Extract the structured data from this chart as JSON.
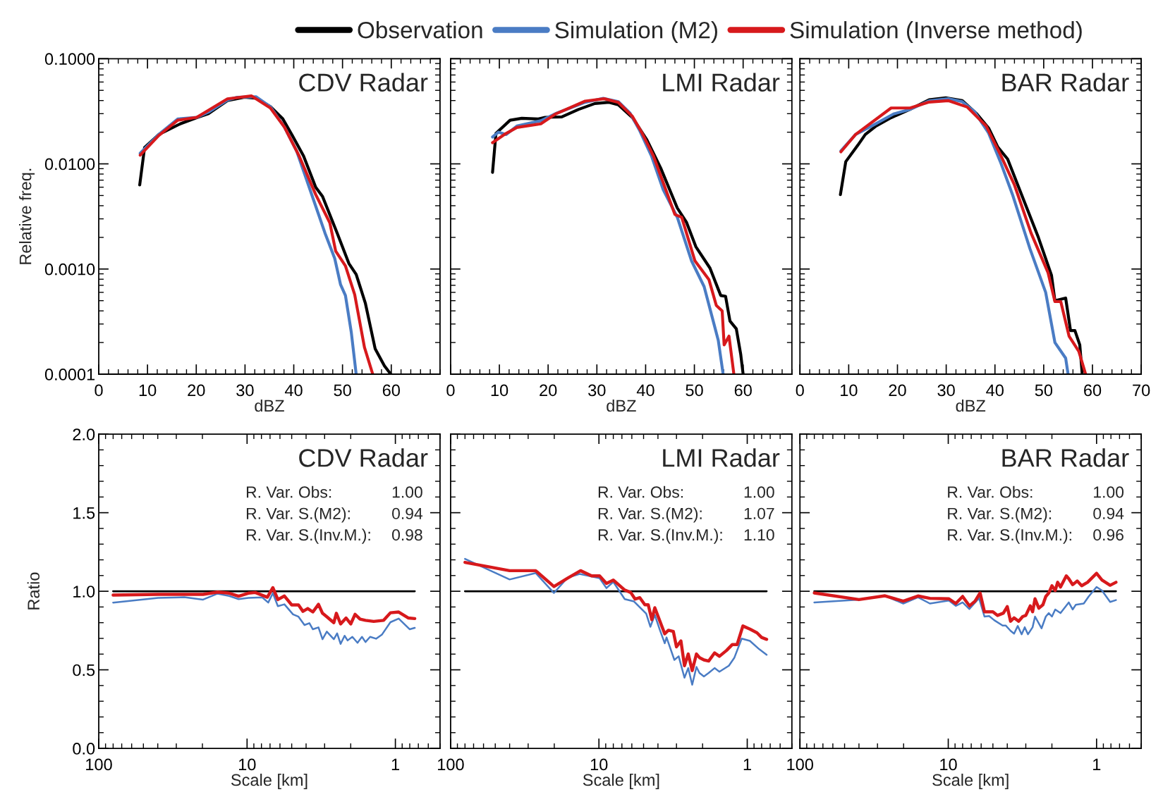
{
  "chart_data": [
    {
      "type": "line",
      "xlabel": "dBZ",
      "ylabel": "Relative freq.",
      "log": "y",
      "xlim": [
        0,
        70
      ],
      "ylim": [
        0.0001,
        0.1
      ],
      "xticks": [
        0,
        10,
        20,
        30,
        40,
        50,
        60
      ],
      "yticks": [
        {
          "value": 0.0001,
          "label": "0.0001"
        },
        {
          "value": 0.001,
          "label": "0.0010"
        },
        {
          "value": 0.01,
          "label": "0.0100"
        },
        {
          "value": 0.1,
          "label": "0.1000"
        }
      ],
      "legend": "top",
      "grid": false,
      "annotations": [
        "CDV Radar"
      ],
      "series": [
        {
          "name": "Observation",
          "color": "#000000",
          "x": [
            8.4,
            9.4,
            12.3,
            16.7,
            20.1,
            22.5,
            26.4,
            29.9,
            32.3,
            35.2,
            37.7,
            39.6,
            42,
            44.5,
            45.9,
            48.9,
            51.3,
            52.8,
            54.7,
            56.7,
            58.6,
            59.9
          ],
          "values": [
            0.0063,
            0.0143,
            0.019,
            0.024,
            0.0275,
            0.03,
            0.04,
            0.043,
            0.042,
            0.035,
            0.027,
            0.019,
            0.0119,
            0.006,
            0.0049,
            0.0022,
            0.00113,
            0.00089,
            0.00047,
            0.000174,
            0.00012,
            0.0001
          ]
        },
        {
          "name": "Simulation (M2)",
          "color": "#4a7cc4",
          "x": [
            8.5,
            12.3,
            16.2,
            20.1,
            22.5,
            26.4,
            28.4,
            32.3,
            35.2,
            38.1,
            40.6,
            43.5,
            46.4,
            48.4,
            49.6,
            50.6,
            51.8,
            52.8
          ],
          "values": [
            0.0126,
            0.019,
            0.0267,
            0.0277,
            0.031,
            0.0405,
            0.043,
            0.0434,
            0.035,
            0.0223,
            0.0132,
            0.0054,
            0.0022,
            0.00126,
            0.00071,
            0.00056,
            0.00025,
            0.0001
          ]
        },
        {
          "name": "Simulation (Inverse method)",
          "color": "#d7191c",
          "x": [
            8.5,
            12.3,
            16.2,
            20.1,
            26.4,
            31.3,
            35.2,
            38.1,
            41.1,
            44.5,
            47.4,
            48.6,
            50.6,
            52.5,
            54.5,
            56.2
          ],
          "values": [
            0.0121,
            0.0186,
            0.026,
            0.0277,
            0.0415,
            0.0443,
            0.034,
            0.0223,
            0.0119,
            0.0051,
            0.00275,
            0.00148,
            0.00107,
            0.00057,
            0.00018,
            0.0001
          ]
        }
      ]
    },
    {
      "type": "line",
      "xlabel": "dBZ",
      "log": "y",
      "xlim": [
        0,
        70
      ],
      "ylim": [
        0.0001,
        0.1
      ],
      "xticks": [
        0,
        10,
        20,
        30,
        40,
        50,
        60
      ],
      "tick_labels": "x",
      "grid": false,
      "annotations": [
        "LMI Radar"
      ],
      "series": [
        {
          "color": "#000000",
          "x": [
            8.6,
            9.3,
            12.2,
            14.6,
            18,
            19.4,
            22.8,
            26.2,
            29.6,
            32.5,
            34.4,
            37.3,
            40.2,
            43.1,
            46.5,
            48.4,
            50.3,
            53.2,
            55.4,
            56.4,
            57.3,
            58.6,
            59.5,
            60
          ],
          "values": [
            0.0083,
            0.0195,
            0.026,
            0.0271,
            0.0267,
            0.0277,
            0.028,
            0.0329,
            0.0375,
            0.0385,
            0.0365,
            0.0275,
            0.0171,
            0.0091,
            0.0038,
            0.00277,
            0.00163,
            0.00102,
            0.00056,
            0.00055,
            0.00032,
            0.00027,
            0.000155,
            0.0001
          ]
        },
        {
          "color": "#4a7cc4",
          "x": [
            8.6,
            9.8,
            11.4,
            13.6,
            18.5,
            21.8,
            27.6,
            31.3,
            34.4,
            36.8,
            38.7,
            41.2,
            43.6,
            46.5,
            49.4,
            52,
            54.9,
            55.9
          ],
          "values": [
            0.018,
            0.02,
            0.019,
            0.0229,
            0.0257,
            0.0304,
            0.0385,
            0.042,
            0.039,
            0.0304,
            0.0211,
            0.0119,
            0.0057,
            0.0031,
            0.0012,
            0.00068,
            0.00021,
            0.0001
          ]
        },
        {
          "color": "#d7191c",
          "x": [
            8.6,
            11,
            13.6,
            18.5,
            21.4,
            27.6,
            31.5,
            34.4,
            37.3,
            39.2,
            41.6,
            46,
            47.4,
            50.1,
            53,
            54.5,
            55.7,
            56.1,
            57.1,
            58.1
          ],
          "values": [
            0.0159,
            0.019,
            0.0222,
            0.024,
            0.0296,
            0.0395,
            0.0416,
            0.0385,
            0.0282,
            0.0199,
            0.0119,
            0.0033,
            0.0031,
            0.0012,
            0.00079,
            0.00045,
            0.0004,
            0.00019,
            0.00023,
            0.0001
          ]
        }
      ]
    },
    {
      "type": "line",
      "xlabel": "dBZ",
      "log": "y",
      "xlim": [
        0,
        70
      ],
      "ylim": [
        0.0001,
        0.1
      ],
      "xticks": [
        0,
        10,
        20,
        30,
        40,
        50,
        60,
        70
      ],
      "tick_labels": "x",
      "grid": false,
      "annotations": [
        "BAR Radar"
      ],
      "series": [
        {
          "color": "#000000",
          "x": [
            8.3,
            9.4,
            11.9,
            13.4,
            15.6,
            18.7,
            22.6,
            26.5,
            29.9,
            33.3,
            36.3,
            38.7,
            40.6,
            42.6,
            46,
            48.9,
            51.6,
            52.3,
            54.5,
            55.5,
            56.4,
            57.4,
            57.9
          ],
          "values": [
            0.0051,
            0.0105,
            0.0151,
            0.019,
            0.0229,
            0.0275,
            0.033,
            0.0407,
            0.0425,
            0.04,
            0.0298,
            0.0219,
            0.0144,
            0.0111,
            0.0044,
            0.002,
            0.00087,
            0.0005,
            0.00053,
            0.00026,
            0.00026,
            0.00019,
            0.0001
          ]
        },
        {
          "color": "#4a7cc4",
          "x": [
            8.4,
            11.4,
            15.3,
            19.2,
            22.6,
            26.5,
            30.4,
            33.3,
            35.8,
            38.7,
            41.1,
            43.6,
            47.2,
            50.4,
            52.3,
            54.5,
            55
          ],
          "values": [
            0.0133,
            0.019,
            0.0237,
            0.0298,
            0.033,
            0.0397,
            0.0417,
            0.039,
            0.0314,
            0.0196,
            0.0105,
            0.0051,
            0.00155,
            0.0006,
            0.0002,
            0.000142,
            0.0001
          ]
        },
        {
          "color": "#d7191c",
          "x": [
            8.4,
            11.4,
            18.7,
            22.6,
            26.5,
            30.4,
            34.3,
            38.2,
            41.1,
            44,
            47.4,
            50.9,
            52.3,
            53.5,
            55.2,
            57.2,
            58.6
          ],
          "values": [
            0.013,
            0.019,
            0.034,
            0.034,
            0.0387,
            0.0399,
            0.0347,
            0.0229,
            0.0123,
            0.0063,
            0.0022,
            0.00092,
            0.00049,
            0.00049,
            0.00023,
            0.000165,
            0.0001
          ]
        }
      ]
    },
    {
      "type": "line",
      "xlabel": "Scale [km]",
      "ylabel": "Ratio",
      "log": "x",
      "xlim": [
        100,
        0.5
      ],
      "ylim": [
        0,
        2
      ],
      "xticks": [
        100,
        10,
        1
      ],
      "yticks": [
        {
          "value": 0,
          "label": "0.0"
        },
        {
          "value": 0.5,
          "label": "0.5"
        },
        {
          "value": 1,
          "label": "1.0"
        },
        {
          "value": 1.5,
          "label": "1.5"
        },
        {
          "value": 2,
          "label": "2.0"
        }
      ],
      "grid": false,
      "annotations": [
        "CDV Radar",
        "R. Var. Obs:",
        "1.00",
        "R. Var. S.(M2):",
        "0.94",
        "R. Var. S.(Inv.M.):",
        "0.98"
      ],
      "series": [
        {
          "color": "#000000",
          "x": [
            80,
            0.74
          ],
          "values": [
            1,
            1
          ]
        },
        {
          "color": "#4a7cc4",
          "x": [
            80,
            39.8,
            26.5,
            19.8,
            15.8,
            13.2,
            11.4,
            9.8,
            7.9,
            7.2,
            6.7,
            6.2,
            5.6,
            4.9,
            4.5,
            4.1,
            3.8,
            3.6,
            3.3,
            3.1,
            2.9,
            2.6,
            2.47,
            2.34,
            2.2,
            2.1,
            1.95,
            1.8,
            1.68,
            1.59,
            1.48,
            1.35,
            1.23,
            1.08,
            0.95,
            0.8,
            0.74
          ],
          "values": [
            0.928,
            0.958,
            0.962,
            0.947,
            0.985,
            0.97,
            0.95,
            0.958,
            0.961,
            0.928,
            0.988,
            0.905,
            0.917,
            0.853,
            0.838,
            0.785,
            0.797,
            0.758,
            0.77,
            0.695,
            0.743,
            0.695,
            0.732,
            0.665,
            0.717,
            0.687,
            0.71,
            0.672,
            0.71,
            0.677,
            0.71,
            0.698,
            0.725,
            0.803,
            0.826,
            0.758,
            0.767
          ]
        },
        {
          "color": "#d7191c",
          "x": [
            80,
            39.8,
            19.8,
            15.8,
            13.2,
            11.4,
            9.8,
            8.8,
            7.3,
            6.7,
            6.2,
            5.6,
            5.0,
            4.5,
            4.2,
            3.9,
            3.6,
            3.3,
            3.1,
            2.9,
            2.6,
            2.5,
            2.34,
            2.15,
            2.0,
            1.87,
            1.73,
            1.59,
            1.4,
            1.2,
            1.08,
            0.95,
            0.82,
            0.74
          ],
          "values": [
            0.976,
            0.98,
            0.98,
            0.995,
            0.988,
            0.968,
            0.988,
            0.992,
            0.962,
            1.023,
            0.947,
            0.97,
            0.913,
            0.913,
            0.872,
            0.89,
            0.868,
            0.917,
            0.86,
            0.838,
            0.8,
            0.86,
            0.792,
            0.83,
            0.792,
            0.853,
            0.823,
            0.815,
            0.808,
            0.815,
            0.863,
            0.868,
            0.83,
            0.826
          ]
        }
      ]
    },
    {
      "type": "line",
      "xlabel": "Scale [km]",
      "log": "x",
      "xlim": [
        100,
        0.5
      ],
      "ylim": [
        0,
        2
      ],
      "xticks": [
        100,
        10,
        1
      ],
      "tick_labels": "x",
      "grid": false,
      "annotations": [
        "LMI Radar",
        "R. Var. Obs:",
        "1.00",
        "R. Var. S.(M2):",
        "1.07",
        "R. Var. S.(Inv.M.):",
        "1.10"
      ],
      "series": [
        {
          "color": "#000000",
          "x": [
            80,
            0.74
          ],
          "values": [
            1,
            1
          ]
        },
        {
          "color": "#4a7cc4",
          "x": [
            80,
            40,
            26.7,
            20.1,
            16.3,
            13.5,
            9.9,
            8.9,
            8.0,
            6.7,
            5.8,
            4.8,
            4.5,
            4.2,
            3.9,
            3.6,
            3.5,
            3.1,
            2.9,
            2.65,
            2.5,
            2.35,
            2.2,
            2.1,
            1.96,
            1.82,
            1.66,
            1.54,
            1.33,
            1.22,
            1.09,
            0.96,
            0.83,
            0.74
          ],
          "values": [
            1.206,
            1.075,
            1.116,
            0.989,
            1.086,
            1.11,
            1.083,
            1.02,
            1.06,
            0.95,
            0.935,
            0.857,
            0.774,
            0.849,
            0.759,
            0.669,
            0.706,
            0.563,
            0.586,
            0.45,
            0.511,
            0.405,
            0.518,
            0.48,
            0.458,
            0.48,
            0.511,
            0.488,
            0.526,
            0.578,
            0.699,
            0.684,
            0.631,
            0.596
          ]
        },
        {
          "color": "#d7191c",
          "x": [
            80,
            40,
            26.7,
            20.1,
            16.3,
            13.3,
            11.2,
            9.9,
            8.9,
            8.0,
            6.7,
            6.1,
            5.7,
            5.3,
            4.9,
            4.65,
            4.4,
            4.2,
            3.6,
            3.4,
            3.15,
            3.0,
            2.8,
            2.65,
            2.5,
            2.35,
            2.2,
            2.1,
            1.96,
            1.82,
            1.66,
            1.54,
            1.38,
            1.26,
            1.17,
            1.07,
            0.96,
            0.86,
            0.8,
            0.74
          ],
          "values": [
            1.184,
            1.131,
            1.131,
            1.03,
            1.083,
            1.131,
            1.098,
            1.098,
            1.05,
            1.071,
            1.008,
            0.992,
            0.95,
            0.959,
            0.914,
            0.914,
            0.819,
            0.895,
            0.729,
            0.752,
            0.744,
            0.646,
            0.684,
            0.526,
            0.601,
            0.495,
            0.601,
            0.578,
            0.563,
            0.556,
            0.608,
            0.586,
            0.623,
            0.661,
            0.661,
            0.779,
            0.759,
            0.736,
            0.706,
            0.694
          ]
        }
      ]
    },
    {
      "type": "line",
      "xlabel": "Scale [km]",
      "log": "x",
      "xlim": [
        100,
        0.5
      ],
      "ylim": [
        0,
        2
      ],
      "xticks": [
        100,
        10,
        1
      ],
      "tick_labels": "x",
      "grid": false,
      "annotations": [
        "BAR Radar",
        "R. Var. Obs:",
        "1.00",
        "R. Var. S.(M2):",
        "0.94",
        "R. Var. S.(Inv.M.):",
        "0.96"
      ],
      "series": [
        {
          "color": "#000000",
          "x": [
            80,
            0.74
          ],
          "values": [
            1,
            1
          ]
        },
        {
          "color": "#4a7cc4",
          "x": [
            80,
            40,
            26.7,
            20.1,
            16.0,
            13.3,
            9.9,
            8.9,
            8.0,
            7.2,
            6.2,
            5.7,
            5.3,
            4.9,
            4.3,
            4.1,
            3.8,
            3.6,
            3.4,
            3.2,
            3.05,
            2.9,
            2.7,
            2.6,
            2.35,
            2.2,
            2.1,
            2.0,
            1.9,
            1.75,
            1.54,
            1.45,
            1.38,
            1.22,
            1.13,
            1.0,
            0.92,
            0.81,
            0.74
          ],
          "values": [
            0.929,
            0.947,
            0.971,
            0.922,
            0.962,
            0.922,
            0.941,
            0.907,
            0.929,
            0.887,
            0.956,
            0.839,
            0.842,
            0.816,
            0.782,
            0.782,
            0.748,
            0.73,
            0.779,
            0.726,
            0.771,
            0.726,
            0.771,
            0.839,
            0.764,
            0.839,
            0.861,
            0.839,
            0.884,
            0.861,
            0.929,
            0.884,
            0.914,
            0.922,
            0.967,
            1.027,
            1.005,
            0.932,
            0.944
          ]
        },
        {
          "color": "#d7191c",
          "x": [
            80,
            40,
            26.7,
            20.1,
            16.0,
            13.3,
            9.9,
            8.9,
            8.0,
            7.2,
            6.6,
            6.1,
            5.7,
            5.0,
            4.65,
            4.25,
            4.0,
            3.8,
            3.6,
            3.35,
            3.15,
            3.0,
            2.8,
            2.7,
            2.6,
            2.45,
            2.3,
            2.2,
            2.1,
            2.0,
            1.9,
            1.83,
            1.75,
            1.6,
            1.54,
            1.45,
            1.35,
            1.26,
            1.15,
            1.0,
            0.92,
            0.81,
            0.74
          ],
          "values": [
            0.989,
            0.947,
            0.971,
            0.937,
            0.97,
            0.955,
            0.952,
            0.922,
            0.967,
            0.907,
            0.937,
            0.989,
            0.869,
            0.869,
            0.846,
            0.861,
            0.902,
            0.809,
            0.831,
            0.809,
            0.839,
            0.846,
            0.907,
            0.869,
            0.952,
            0.892,
            0.914,
            0.967,
            0.989,
            1.035,
            1.005,
            1.057,
            1.027,
            1.098,
            1.08,
            1.042,
            1.065,
            1.035,
            1.057,
            1.114,
            1.072,
            1.038,
            1.057
          ]
        }
      ]
    }
  ]
}
